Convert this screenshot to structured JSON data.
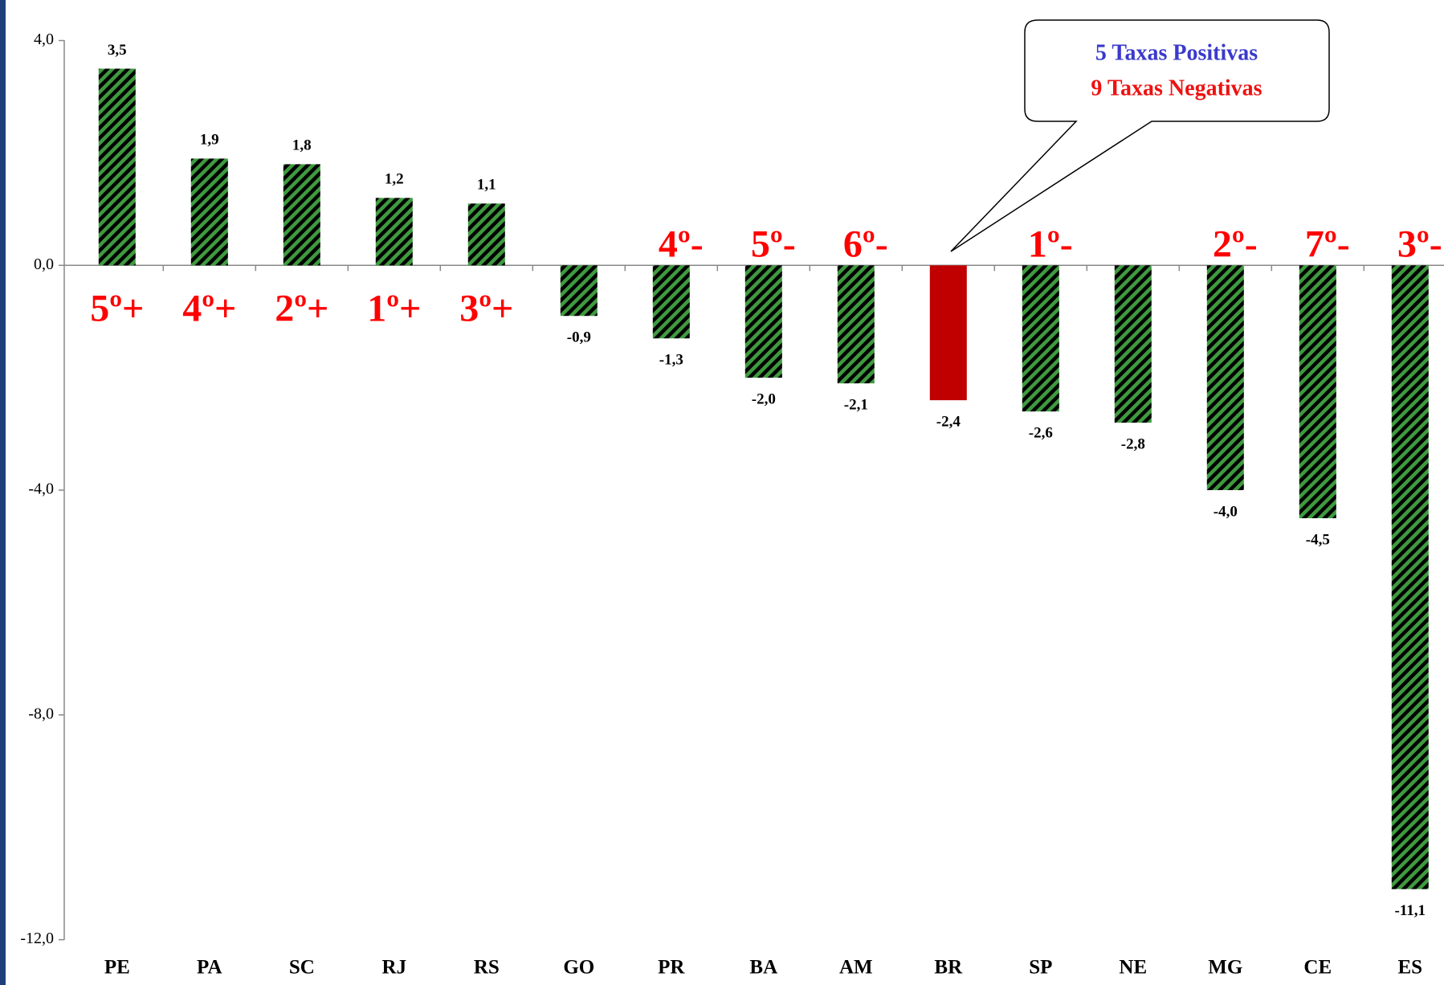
{
  "chart_data": {
    "type": "bar",
    "categories": [
      "PE",
      "PA",
      "SC",
      "RJ",
      "RS",
      "GO",
      "PR",
      "BA",
      "AM",
      "BR",
      "SP",
      "NE",
      "MG",
      "CE",
      "ES"
    ],
    "values": [
      3.5,
      1.9,
      1.8,
      1.2,
      1.1,
      -0.9,
      -1.3,
      -2.0,
      -2.1,
      -2.4,
      -2.6,
      -2.8,
      -4.0,
      -4.5,
      -11.1
    ],
    "value_labels": [
      "3,5",
      "1,9",
      "1,8",
      "1,2",
      "1,1",
      "-0,9",
      "-1,3",
      "-2,0",
      "-2,1",
      "-2,4",
      "-2,6",
      "-2,8",
      "-4,0",
      "-4,5",
      "-11,1"
    ],
    "rank_labels": [
      "5º+",
      "4º+",
      "2º+",
      "1º+",
      "3º+",
      null,
      "4º-",
      "5º-",
      "6º-",
      null,
      "1º-",
      null,
      "2º-",
      "7º-",
      "3º-"
    ],
    "color": "#3f9a3f",
    "hatched": true,
    "highlight_category": "BR",
    "highlight_color": "#c00000",
    "ylim": [
      -12,
      4
    ],
    "yticks": [
      {
        "value": 4,
        "label": "4,0"
      },
      {
        "value": 0,
        "label": "0,0"
      },
      {
        "value": -4,
        "label": "-4,0"
      },
      {
        "value": -8,
        "label": "-8,0"
      },
      {
        "value": -12,
        "label": "-12,0"
      }
    ],
    "annotations": [
      {
        "text": "5 Taxas Positivas",
        "color": "#3a3acc"
      },
      {
        "text": "9 Taxas Negativas",
        "color": "#ee1111"
      }
    ]
  }
}
